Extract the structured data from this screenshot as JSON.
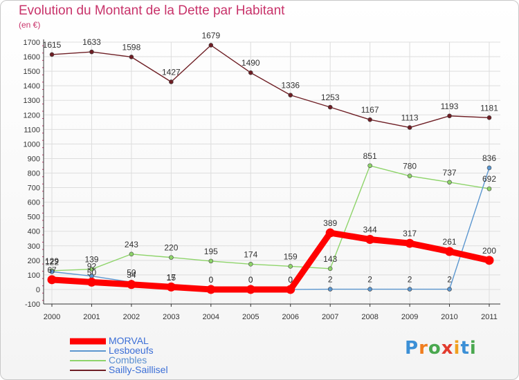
{
  "header": {
    "title": "Evolution du Montant de la Dette par Habitant",
    "subtitle": "(en €)"
  },
  "colors": {
    "title": "#c8336a",
    "axis": "#333333",
    "grid": "#dddddd",
    "tick_mark": "#c8336a"
  },
  "logo": {
    "text": "Proxiti",
    "letter_colors": [
      "#3b8fd6",
      "#f07d1e",
      "#4aa84f",
      "#e23b2e",
      "#f0a020",
      "#3b8fd6",
      "#4aa84f"
    ]
  },
  "chart_data": {
    "type": "line",
    "title": "Evolution du Montant de la Dette par Habitant",
    "ylabel": "(en €)",
    "xlabel": "",
    "x": [
      "2000",
      "2001",
      "2002",
      "2003",
      "2004",
      "2005",
      "2006",
      "2007",
      "2008",
      "2009",
      "2010",
      "2011"
    ],
    "ylim": [
      -100,
      1700
    ],
    "yticks": [
      -100,
      0,
      100,
      200,
      300,
      400,
      500,
      600,
      700,
      800,
      900,
      1000,
      1100,
      1200,
      1300,
      1400,
      1500,
      1600,
      1700
    ],
    "grid": true,
    "legend_position": "bottom-left",
    "series": [
      {
        "name": "MORVAL",
        "color": "#ff0000",
        "values": [
          67,
          50,
          34,
          17,
          0,
          0,
          0,
          389,
          344,
          317,
          261,
          200
        ]
      },
      {
        "name": "Lesboeufs",
        "color": "#5b96cf",
        "values": [
          122,
          92,
          50,
          15,
          0,
          0,
          0,
          2,
          2,
          2,
          2,
          836
        ]
      },
      {
        "name": "Combles",
        "color": "#8ed46a",
        "values": [
          129,
          139,
          243,
          220,
          195,
          174,
          159,
          143,
          851,
          780,
          737,
          692
        ]
      },
      {
        "name": "Sailly-Saillisel",
        "color": "#6e1e24",
        "values": [
          1615,
          1633,
          1598,
          1427,
          1679,
          1490,
          1336,
          1253,
          1167,
          1113,
          1193,
          1181
        ]
      }
    ]
  }
}
